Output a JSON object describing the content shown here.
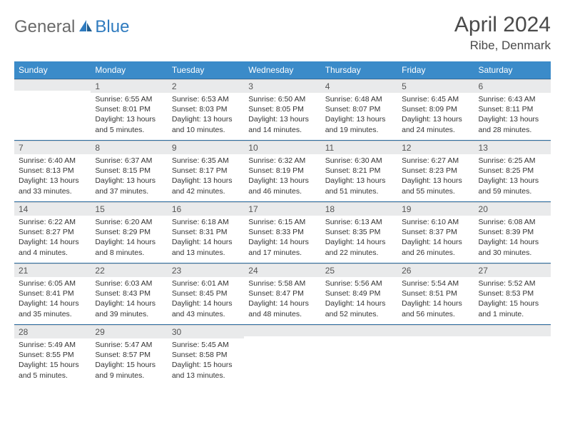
{
  "brand": {
    "part1": "General",
    "part2": "Blue"
  },
  "title": "April 2024",
  "location": "Ribe, Denmark",
  "colors": {
    "header_bg": "#3b8bc9",
    "header_text": "#ffffff",
    "daynum_bg": "#e9eaeb",
    "row_border": "#2f6fa3",
    "logo_gray": "#6a6a6a",
    "logo_blue": "#2f7bbf"
  },
  "weekdays": [
    "Sunday",
    "Monday",
    "Tuesday",
    "Wednesday",
    "Thursday",
    "Friday",
    "Saturday"
  ],
  "weeks": [
    [
      {
        "num": "",
        "sunrise": "",
        "sunset": "",
        "daylight": ""
      },
      {
        "num": "1",
        "sunrise": "Sunrise: 6:55 AM",
        "sunset": "Sunset: 8:01 PM",
        "daylight": "Daylight: 13 hours and 5 minutes."
      },
      {
        "num": "2",
        "sunrise": "Sunrise: 6:53 AM",
        "sunset": "Sunset: 8:03 PM",
        "daylight": "Daylight: 13 hours and 10 minutes."
      },
      {
        "num": "3",
        "sunrise": "Sunrise: 6:50 AM",
        "sunset": "Sunset: 8:05 PM",
        "daylight": "Daylight: 13 hours and 14 minutes."
      },
      {
        "num": "4",
        "sunrise": "Sunrise: 6:48 AM",
        "sunset": "Sunset: 8:07 PM",
        "daylight": "Daylight: 13 hours and 19 minutes."
      },
      {
        "num": "5",
        "sunrise": "Sunrise: 6:45 AM",
        "sunset": "Sunset: 8:09 PM",
        "daylight": "Daylight: 13 hours and 24 minutes."
      },
      {
        "num": "6",
        "sunrise": "Sunrise: 6:43 AM",
        "sunset": "Sunset: 8:11 PM",
        "daylight": "Daylight: 13 hours and 28 minutes."
      }
    ],
    [
      {
        "num": "7",
        "sunrise": "Sunrise: 6:40 AM",
        "sunset": "Sunset: 8:13 PM",
        "daylight": "Daylight: 13 hours and 33 minutes."
      },
      {
        "num": "8",
        "sunrise": "Sunrise: 6:37 AM",
        "sunset": "Sunset: 8:15 PM",
        "daylight": "Daylight: 13 hours and 37 minutes."
      },
      {
        "num": "9",
        "sunrise": "Sunrise: 6:35 AM",
        "sunset": "Sunset: 8:17 PM",
        "daylight": "Daylight: 13 hours and 42 minutes."
      },
      {
        "num": "10",
        "sunrise": "Sunrise: 6:32 AM",
        "sunset": "Sunset: 8:19 PM",
        "daylight": "Daylight: 13 hours and 46 minutes."
      },
      {
        "num": "11",
        "sunrise": "Sunrise: 6:30 AM",
        "sunset": "Sunset: 8:21 PM",
        "daylight": "Daylight: 13 hours and 51 minutes."
      },
      {
        "num": "12",
        "sunrise": "Sunrise: 6:27 AM",
        "sunset": "Sunset: 8:23 PM",
        "daylight": "Daylight: 13 hours and 55 minutes."
      },
      {
        "num": "13",
        "sunrise": "Sunrise: 6:25 AM",
        "sunset": "Sunset: 8:25 PM",
        "daylight": "Daylight: 13 hours and 59 minutes."
      }
    ],
    [
      {
        "num": "14",
        "sunrise": "Sunrise: 6:22 AM",
        "sunset": "Sunset: 8:27 PM",
        "daylight": "Daylight: 14 hours and 4 minutes."
      },
      {
        "num": "15",
        "sunrise": "Sunrise: 6:20 AM",
        "sunset": "Sunset: 8:29 PM",
        "daylight": "Daylight: 14 hours and 8 minutes."
      },
      {
        "num": "16",
        "sunrise": "Sunrise: 6:18 AM",
        "sunset": "Sunset: 8:31 PM",
        "daylight": "Daylight: 14 hours and 13 minutes."
      },
      {
        "num": "17",
        "sunrise": "Sunrise: 6:15 AM",
        "sunset": "Sunset: 8:33 PM",
        "daylight": "Daylight: 14 hours and 17 minutes."
      },
      {
        "num": "18",
        "sunrise": "Sunrise: 6:13 AM",
        "sunset": "Sunset: 8:35 PM",
        "daylight": "Daylight: 14 hours and 22 minutes."
      },
      {
        "num": "19",
        "sunrise": "Sunrise: 6:10 AM",
        "sunset": "Sunset: 8:37 PM",
        "daylight": "Daylight: 14 hours and 26 minutes."
      },
      {
        "num": "20",
        "sunrise": "Sunrise: 6:08 AM",
        "sunset": "Sunset: 8:39 PM",
        "daylight": "Daylight: 14 hours and 30 minutes."
      }
    ],
    [
      {
        "num": "21",
        "sunrise": "Sunrise: 6:05 AM",
        "sunset": "Sunset: 8:41 PM",
        "daylight": "Daylight: 14 hours and 35 minutes."
      },
      {
        "num": "22",
        "sunrise": "Sunrise: 6:03 AM",
        "sunset": "Sunset: 8:43 PM",
        "daylight": "Daylight: 14 hours and 39 minutes."
      },
      {
        "num": "23",
        "sunrise": "Sunrise: 6:01 AM",
        "sunset": "Sunset: 8:45 PM",
        "daylight": "Daylight: 14 hours and 43 minutes."
      },
      {
        "num": "24",
        "sunrise": "Sunrise: 5:58 AM",
        "sunset": "Sunset: 8:47 PM",
        "daylight": "Daylight: 14 hours and 48 minutes."
      },
      {
        "num": "25",
        "sunrise": "Sunrise: 5:56 AM",
        "sunset": "Sunset: 8:49 PM",
        "daylight": "Daylight: 14 hours and 52 minutes."
      },
      {
        "num": "26",
        "sunrise": "Sunrise: 5:54 AM",
        "sunset": "Sunset: 8:51 PM",
        "daylight": "Daylight: 14 hours and 56 minutes."
      },
      {
        "num": "27",
        "sunrise": "Sunrise: 5:52 AM",
        "sunset": "Sunset: 8:53 PM",
        "daylight": "Daylight: 15 hours and 1 minute."
      }
    ],
    [
      {
        "num": "28",
        "sunrise": "Sunrise: 5:49 AM",
        "sunset": "Sunset: 8:55 PM",
        "daylight": "Daylight: 15 hours and 5 minutes."
      },
      {
        "num": "29",
        "sunrise": "Sunrise: 5:47 AM",
        "sunset": "Sunset: 8:57 PM",
        "daylight": "Daylight: 15 hours and 9 minutes."
      },
      {
        "num": "30",
        "sunrise": "Sunrise: 5:45 AM",
        "sunset": "Sunset: 8:58 PM",
        "daylight": "Daylight: 15 hours and 13 minutes."
      },
      {
        "num": "",
        "sunrise": "",
        "sunset": "",
        "daylight": ""
      },
      {
        "num": "",
        "sunrise": "",
        "sunset": "",
        "daylight": ""
      },
      {
        "num": "",
        "sunrise": "",
        "sunset": "",
        "daylight": ""
      },
      {
        "num": "",
        "sunrise": "",
        "sunset": "",
        "daylight": ""
      }
    ]
  ]
}
